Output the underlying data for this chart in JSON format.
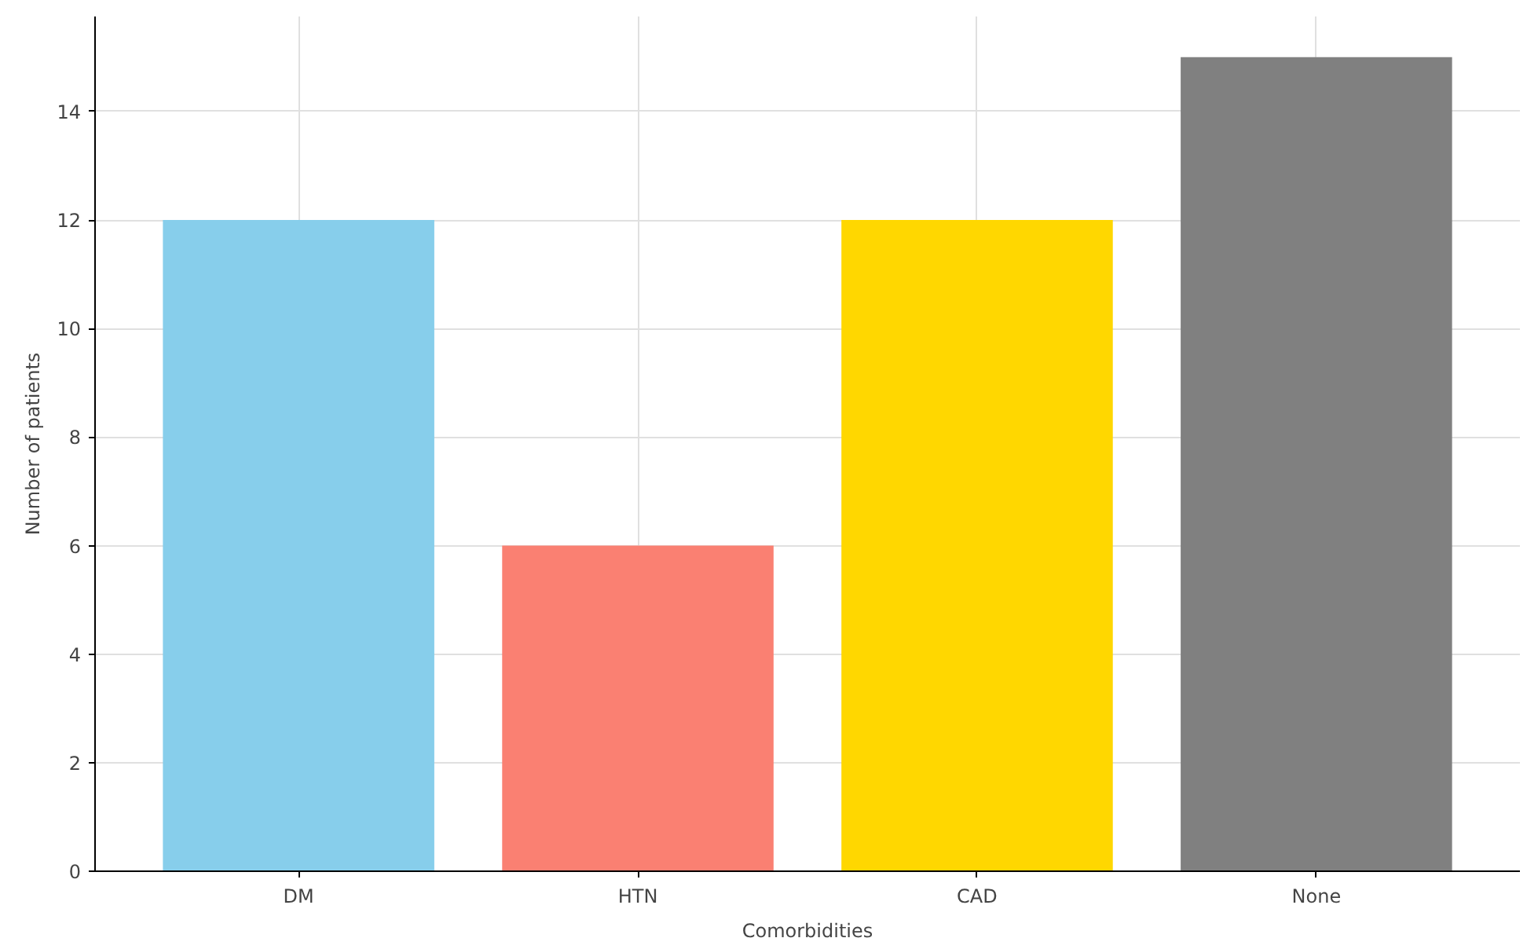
{
  "chart_data": {
    "type": "bar",
    "xlabel": "Comorbidities",
    "ylabel": "Number of patients",
    "categories": [
      "DM",
      "HTN",
      "CAD",
      "None"
    ],
    "values": [
      12,
      6,
      12,
      15
    ],
    "colors": [
      "#87ceeb",
      "#fa8072",
      "#ffd700",
      "#808080"
    ],
    "ylim": [
      0,
      15.75
    ],
    "yticks": [
      0,
      2,
      4,
      6,
      8,
      10,
      12,
      14
    ],
    "grid": true
  }
}
